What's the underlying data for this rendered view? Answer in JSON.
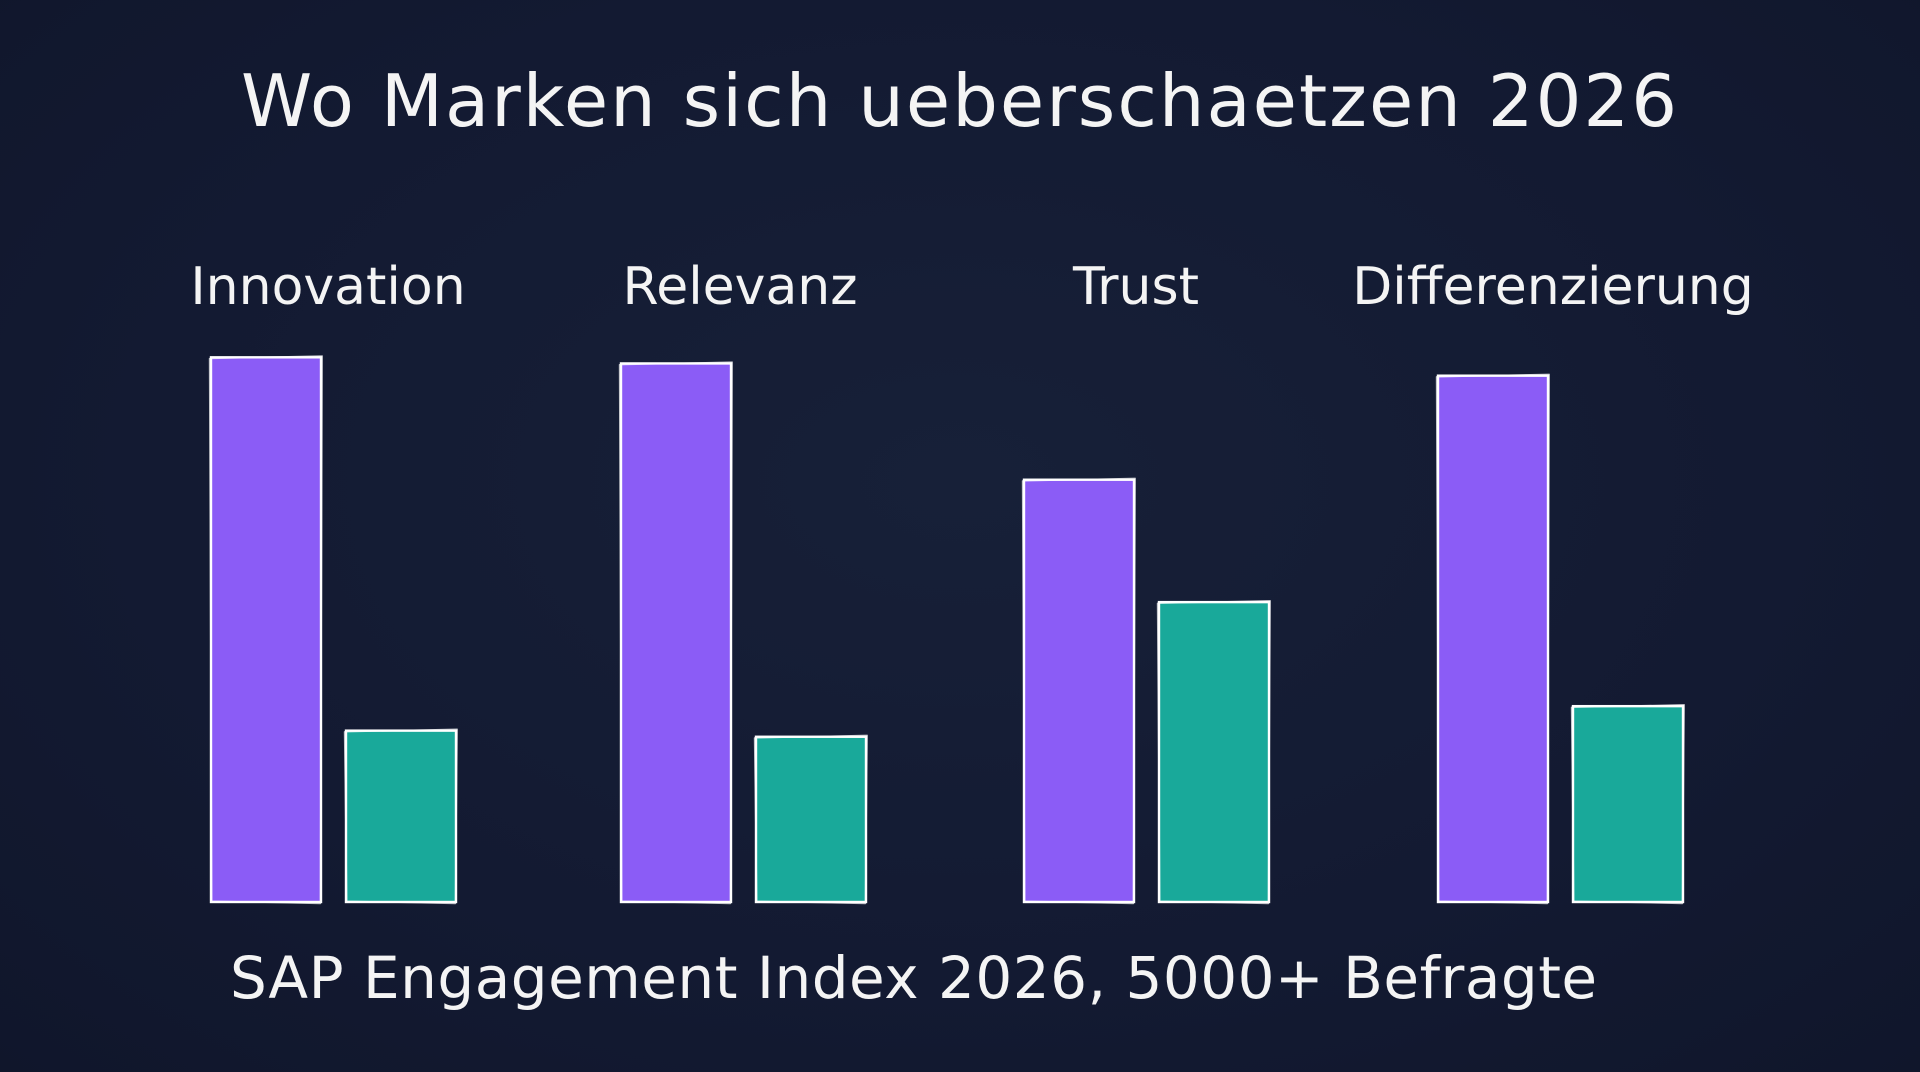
{
  "chart_data": {
    "type": "bar",
    "title": "Wo Marken sich ueberschaetzen 2026",
    "categories": [
      "Innovation",
      "Relevanz",
      "Trust",
      "Differenzierung"
    ],
    "series": [
      {
        "values": [
          89,
          88,
          69,
          86
        ],
        "color": "#8B5CF6"
      },
      {
        "values": [
          28,
          27,
          49,
          32
        ],
        "color": "#19A99A"
      }
    ],
    "source_note": "SAP Engagement Index 2026, 5000+ Befragte",
    "xlabel": "",
    "ylabel": "",
    "y_axis_visible": false,
    "grid": false,
    "legend": "none",
    "colors": {
      "background": "#131A32",
      "text": "#F4F4F4",
      "bar_outline": "#FFFFFF"
    }
  }
}
